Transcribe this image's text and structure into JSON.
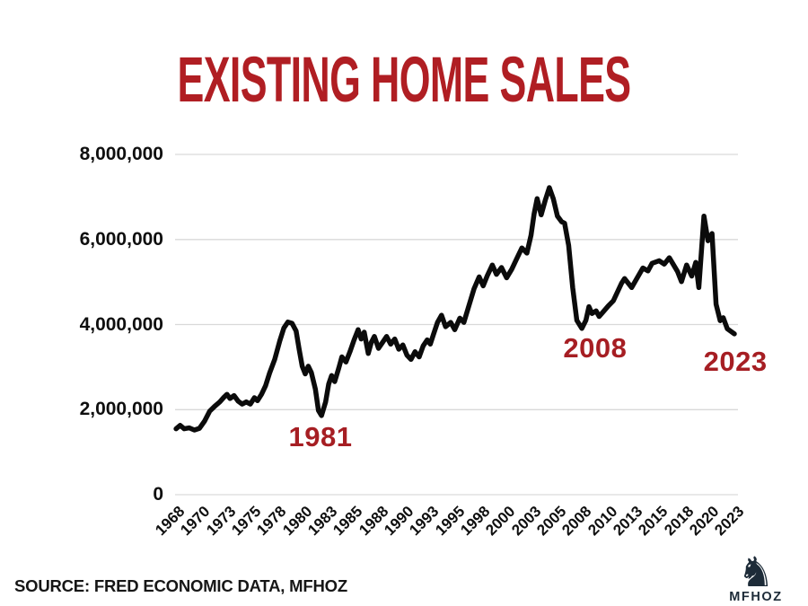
{
  "title": {
    "text": "EXISTING HOME SALES",
    "color": "#B01E23"
  },
  "footer": {
    "source": "SOURCE: FRED ECONOMIC DATA, MFHOZ"
  },
  "logo": {
    "brand": "MFHOZ",
    "icon": "chess-knight-icon",
    "icon_glyph": "♞",
    "color": "#1D2B38"
  },
  "chart_data": {
    "type": "line",
    "title": "EXISTING HOME SALES",
    "xlabel": "",
    "ylabel": "",
    "xlim": [
      1967.9,
      2023.25
    ],
    "ylim": [
      0,
      8000000
    ],
    "grid": "horizontal",
    "grid_color": "#D9D9D9",
    "line_color": "#0B0B0B",
    "annotation_color": "#A61E23",
    "legend": "none",
    "yticks": [
      {
        "value": 0,
        "label": "0"
      },
      {
        "value": 2000000,
        "label": "2,000,000"
      },
      {
        "value": 4000000,
        "label": "4,000,000"
      },
      {
        "value": 6000000,
        "label": "6,000,000"
      },
      {
        "value": 8000000,
        "label": "8,000,000"
      }
    ],
    "xticks": [
      {
        "x": 1968.0,
        "label": "1968"
      },
      {
        "x": 1970.5,
        "label": "1970"
      },
      {
        "x": 1973.0,
        "label": "1973"
      },
      {
        "x": 1975.5,
        "label": "1975"
      },
      {
        "x": 1978.0,
        "label": "1978"
      },
      {
        "x": 1980.5,
        "label": "1980"
      },
      {
        "x": 1983.0,
        "label": "1983"
      },
      {
        "x": 1985.5,
        "label": "1985"
      },
      {
        "x": 1988.0,
        "label": "1988"
      },
      {
        "x": 1990.5,
        "label": "1990"
      },
      {
        "x": 1993.0,
        "label": "1993"
      },
      {
        "x": 1995.5,
        "label": "1995"
      },
      {
        "x": 1998.0,
        "label": "1998"
      },
      {
        "x": 2000.5,
        "label": "2000"
      },
      {
        "x": 2003.0,
        "label": "2003"
      },
      {
        "x": 2005.5,
        "label": "2005"
      },
      {
        "x": 2008.0,
        "label": "2008"
      },
      {
        "x": 2010.5,
        "label": "2010"
      },
      {
        "x": 2013.0,
        "label": "2013"
      },
      {
        "x": 2015.5,
        "label": "2015"
      },
      {
        "x": 2018.0,
        "label": "2018"
      },
      {
        "x": 2020.5,
        "label": "2020"
      },
      {
        "x": 2023.0,
        "label": "2023"
      }
    ],
    "annotations": [
      {
        "label": "1981",
        "x": 1982.2,
        "y": 1350000
      },
      {
        "label": "2008",
        "x": 2009.2,
        "y": 3440000
      },
      {
        "label": "2023",
        "x": 2023.0,
        "y": 3120000
      }
    ],
    "series": [
      {
        "name": "Existing Home Sales",
        "points": [
          [
            1968.0,
            1550000
          ],
          [
            1968.4,
            1630000
          ],
          [
            1968.8,
            1550000
          ],
          [
            1969.3,
            1570000
          ],
          [
            1969.8,
            1520000
          ],
          [
            1970.3,
            1560000
          ],
          [
            1970.8,
            1730000
          ],
          [
            1971.3,
            1960000
          ],
          [
            1971.8,
            2080000
          ],
          [
            1972.3,
            2180000
          ],
          [
            1972.7,
            2290000
          ],
          [
            1973.0,
            2360000
          ],
          [
            1973.3,
            2260000
          ],
          [
            1973.7,
            2330000
          ],
          [
            1974.1,
            2200000
          ],
          [
            1974.5,
            2130000
          ],
          [
            1974.9,
            2180000
          ],
          [
            1975.3,
            2130000
          ],
          [
            1975.7,
            2280000
          ],
          [
            1976.0,
            2210000
          ],
          [
            1976.4,
            2360000
          ],
          [
            1976.8,
            2560000
          ],
          [
            1977.2,
            2860000
          ],
          [
            1977.7,
            3180000
          ],
          [
            1978.2,
            3620000
          ],
          [
            1978.6,
            3920000
          ],
          [
            1979.0,
            4060000
          ],
          [
            1979.4,
            4030000
          ],
          [
            1979.8,
            3850000
          ],
          [
            1980.1,
            3420000
          ],
          [
            1980.4,
            3020000
          ],
          [
            1980.7,
            2840000
          ],
          [
            1981.0,
            3020000
          ],
          [
            1981.3,
            2870000
          ],
          [
            1981.7,
            2480000
          ],
          [
            1982.0,
            1980000
          ],
          [
            1982.3,
            1860000
          ],
          [
            1982.7,
            2180000
          ],
          [
            1983.0,
            2600000
          ],
          [
            1983.3,
            2800000
          ],
          [
            1983.6,
            2660000
          ],
          [
            1984.0,
            2980000
          ],
          [
            1984.3,
            3240000
          ],
          [
            1984.7,
            3120000
          ],
          [
            1985.1,
            3360000
          ],
          [
            1985.5,
            3640000
          ],
          [
            1985.9,
            3880000
          ],
          [
            1986.2,
            3660000
          ],
          [
            1986.5,
            3820000
          ],
          [
            1986.9,
            3320000
          ],
          [
            1987.2,
            3580000
          ],
          [
            1987.5,
            3720000
          ],
          [
            1987.9,
            3440000
          ],
          [
            1988.3,
            3580000
          ],
          [
            1988.7,
            3720000
          ],
          [
            1989.1,
            3540000
          ],
          [
            1989.5,
            3660000
          ],
          [
            1989.9,
            3420000
          ],
          [
            1990.3,
            3520000
          ],
          [
            1990.7,
            3280000
          ],
          [
            1991.1,
            3180000
          ],
          [
            1991.5,
            3360000
          ],
          [
            1991.9,
            3240000
          ],
          [
            1992.3,
            3500000
          ],
          [
            1992.7,
            3640000
          ],
          [
            1993.0,
            3540000
          ],
          [
            1993.3,
            3760000
          ],
          [
            1993.7,
            4050000
          ],
          [
            1994.1,
            4220000
          ],
          [
            1994.5,
            3950000
          ],
          [
            1995.0,
            4050000
          ],
          [
            1995.4,
            3880000
          ],
          [
            1995.9,
            4150000
          ],
          [
            1996.3,
            4050000
          ],
          [
            1996.8,
            4450000
          ],
          [
            1997.3,
            4840000
          ],
          [
            1997.8,
            5120000
          ],
          [
            1998.2,
            4910000
          ],
          [
            1998.6,
            5150000
          ],
          [
            1999.1,
            5400000
          ],
          [
            1999.5,
            5180000
          ],
          [
            2000.0,
            5340000
          ],
          [
            2000.5,
            5100000
          ],
          [
            2001.0,
            5300000
          ],
          [
            2001.5,
            5550000
          ],
          [
            2002.0,
            5800000
          ],
          [
            2002.5,
            5680000
          ],
          [
            2002.9,
            6100000
          ],
          [
            2003.2,
            6600000
          ],
          [
            2003.5,
            6960000
          ],
          [
            2003.9,
            6580000
          ],
          [
            2004.3,
            6920000
          ],
          [
            2004.7,
            7220000
          ],
          [
            2005.1,
            6950000
          ],
          [
            2005.5,
            6550000
          ],
          [
            2005.9,
            6420000
          ],
          [
            2006.2,
            6380000
          ],
          [
            2006.6,
            5860000
          ],
          [
            2007.0,
            4870000
          ],
          [
            2007.4,
            4100000
          ],
          [
            2007.9,
            3910000
          ],
          [
            2008.3,
            4100000
          ],
          [
            2008.6,
            4420000
          ],
          [
            2008.9,
            4260000
          ],
          [
            2009.3,
            4320000
          ],
          [
            2009.6,
            4190000
          ],
          [
            2010.0,
            4300000
          ],
          [
            2010.5,
            4440000
          ],
          [
            2011.0,
            4560000
          ],
          [
            2011.8,
            4970000
          ],
          [
            2012.1,
            5080000
          ],
          [
            2012.8,
            4870000
          ],
          [
            2013.4,
            5120000
          ],
          [
            2013.9,
            5330000
          ],
          [
            2014.4,
            5260000
          ],
          [
            2014.8,
            5440000
          ],
          [
            2015.5,
            5500000
          ],
          [
            2016.0,
            5420000
          ],
          [
            2016.5,
            5570000
          ],
          [
            2017.3,
            5250000
          ],
          [
            2017.7,
            5010000
          ],
          [
            2018.2,
            5400000
          ],
          [
            2018.7,
            5140000
          ],
          [
            2019.1,
            5460000
          ],
          [
            2019.4,
            4870000
          ],
          [
            2019.9,
            6550000
          ],
          [
            2020.3,
            5970000
          ],
          [
            2020.7,
            6140000
          ],
          [
            2021.1,
            4480000
          ],
          [
            2021.5,
            4090000
          ],
          [
            2021.8,
            4160000
          ],
          [
            2022.2,
            3900000
          ],
          [
            2022.9,
            3780000
          ]
        ]
      }
    ]
  }
}
